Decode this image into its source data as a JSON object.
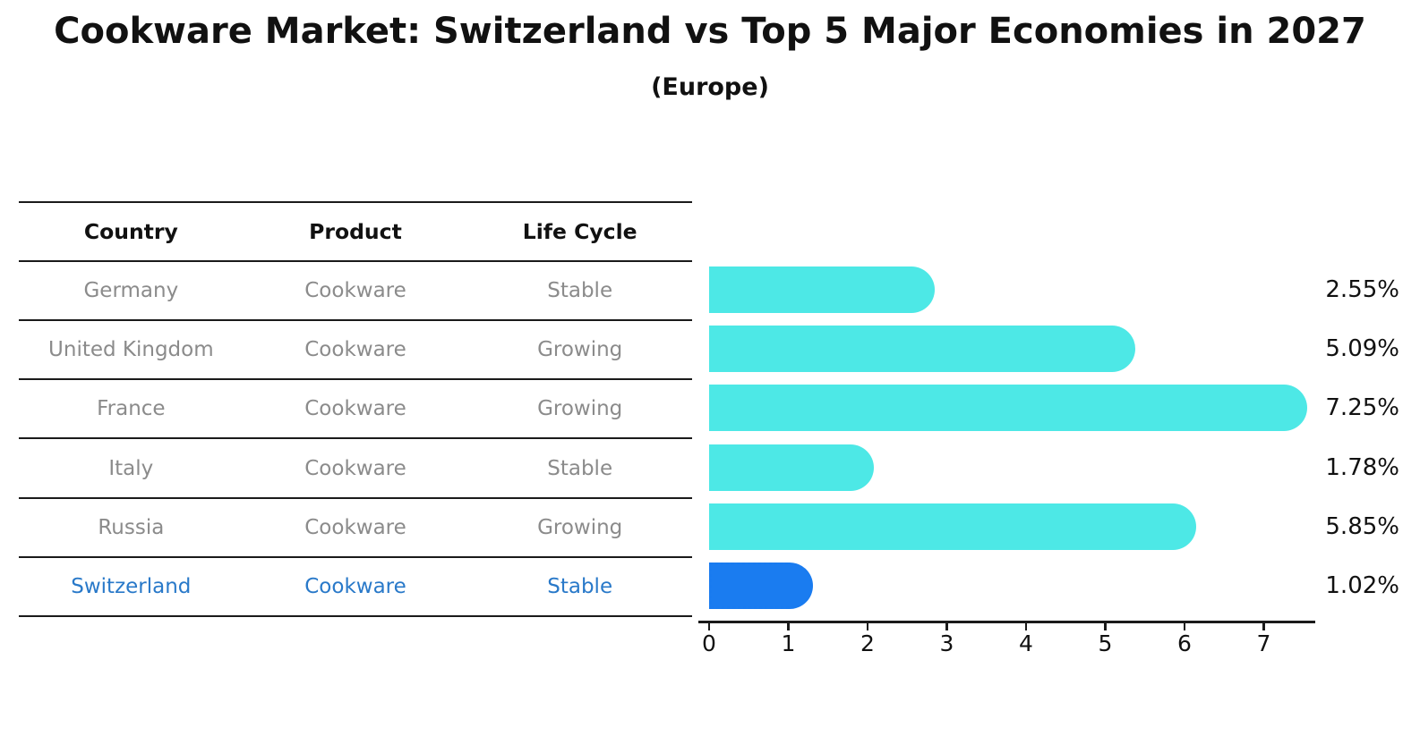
{
  "title": "Cookware Market: Switzerland vs Top 5 Major Economies in 2027",
  "subtitle": "(Europe)",
  "table": {
    "headers": [
      "Country",
      "Product",
      "Life Cycle"
    ],
    "rows": [
      {
        "country": "Germany",
        "product": "Cookware",
        "life_cycle": "Stable",
        "highlighted": false
      },
      {
        "country": "United Kingdom",
        "product": "Cookware",
        "life_cycle": "Growing",
        "highlighted": false
      },
      {
        "country": "France",
        "product": "Cookware",
        "life_cycle": "Growing",
        "highlighted": false
      },
      {
        "country": "Italy",
        "product": "Cookware",
        "life_cycle": "Stable",
        "highlighted": false
      },
      {
        "country": "Russia",
        "product": "Cookware",
        "life_cycle": "Growing",
        "highlighted": false
      },
      {
        "country": "Switzerland",
        "product": "Cookware",
        "life_cycle": "Stable",
        "highlighted": true
      }
    ]
  },
  "chart_data": {
    "type": "bar",
    "orientation": "horizontal",
    "title": "Cookware Market: Switzerland vs Top 5 Major Economies in 2027",
    "subtitle": "(Europe)",
    "categories": [
      "Germany",
      "United Kingdom",
      "France",
      "Italy",
      "Russia",
      "Switzerland"
    ],
    "values": [
      2.55,
      5.09,
      7.25,
      1.78,
      5.85,
      1.02
    ],
    "value_labels": [
      "2.55%",
      "5.09%",
      "7.25%",
      "1.78%",
      "5.85%",
      "1.02%"
    ],
    "unit": "percent",
    "x_ticks": [
      0,
      1,
      2,
      3,
      4,
      5,
      6,
      7
    ],
    "xlim": [
      0,
      7.65
    ],
    "grid": false,
    "legend": false,
    "highlight_index": 5,
    "bar_color": "#4DE8E6",
    "highlight_color": "#1A7CF0"
  },
  "colors": {
    "background": "#ffffff",
    "bar_cyan": "#4DE8E6",
    "bar_blue": "#1A7CF0",
    "highlight_text": "#2979C9",
    "row_text": "#8b8b8b",
    "line": "#1a1a1a",
    "label_text": "#111111"
  }
}
